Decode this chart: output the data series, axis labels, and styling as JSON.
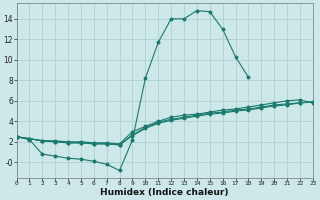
{
  "xlabel": "Humidex (Indice chaleur)",
  "background_color": "#cce8e8",
  "line_color": "#1a7a6e",
  "grid_color": "#aacccc",
  "xlim": [
    0,
    23
  ],
  "ylim": [
    -1.5,
    15.5
  ],
  "xticks": [
    0,
    1,
    2,
    3,
    4,
    5,
    6,
    7,
    8,
    9,
    10,
    11,
    12,
    13,
    14,
    15,
    16,
    17,
    18,
    19,
    20,
    21,
    22,
    23
  ],
  "yticks": [
    0,
    2,
    4,
    6,
    8,
    10,
    12,
    14
  ],
  "ytick_labels": [
    "-0",
    "2",
    "4",
    "6",
    "8",
    "10",
    "12",
    "14"
  ],
  "lines": [
    {
      "x": [
        0,
        1,
        2,
        3,
        4,
        5,
        6,
        7,
        8,
        9,
        10,
        11,
        12,
        13,
        14,
        15,
        16,
        17,
        18
      ],
      "y": [
        2.5,
        2.2,
        0.8,
        0.6,
        0.4,
        0.3,
        0.1,
        -0.2,
        -0.8,
        2.2,
        8.2,
        11.7,
        14.0,
        14.0,
        14.8,
        14.7,
        13.0,
        10.3,
        8.3
      ]
    },
    {
      "x": [
        0,
        1,
        2,
        3,
        4,
        5,
        6,
        7,
        8,
        9,
        10,
        11,
        12,
        13,
        14,
        15,
        16,
        17,
        18,
        19,
        20,
        21,
        22,
        23
      ],
      "y": [
        2.5,
        2.3,
        2.1,
        2.0,
        1.9,
        1.9,
        1.8,
        1.8,
        1.7,
        2.6,
        3.3,
        3.8,
        4.1,
        4.3,
        4.5,
        4.7,
        4.8,
        5.0,
        5.1,
        5.3,
        5.5,
        5.6,
        5.8,
        5.9
      ]
    },
    {
      "x": [
        0,
        1,
        2,
        3,
        4,
        5,
        6,
        7,
        8,
        9,
        10,
        11,
        12,
        13,
        14,
        15,
        16,
        17,
        18,
        19,
        20,
        21,
        22,
        23
      ],
      "y": [
        2.5,
        2.3,
        2.1,
        2.0,
        1.9,
        1.9,
        1.8,
        1.8,
        1.7,
        2.7,
        3.4,
        3.9,
        4.2,
        4.4,
        4.6,
        4.8,
        4.9,
        5.1,
        5.2,
        5.4,
        5.6,
        5.7,
        5.8,
        5.9
      ]
    },
    {
      "x": [
        0,
        1,
        2,
        3,
        4,
        5,
        6,
        7,
        8,
        9,
        10,
        11,
        12,
        13,
        14,
        15,
        16,
        17,
        18,
        19,
        20,
        21,
        22,
        23
      ],
      "y": [
        2.5,
        2.3,
        2.1,
        2.1,
        2.0,
        2.0,
        1.9,
        1.9,
        1.8,
        3.0,
        3.5,
        4.0,
        4.4,
        4.6,
        4.7,
        4.9,
        5.1,
        5.2,
        5.4,
        5.6,
        5.8,
        6.0,
        6.1,
        5.8
      ]
    }
  ]
}
